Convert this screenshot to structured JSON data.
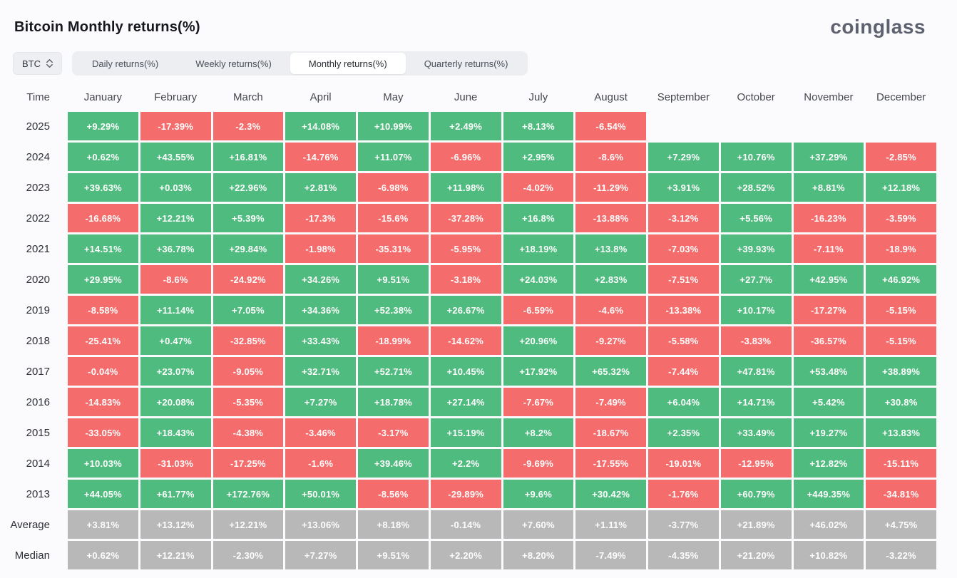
{
  "page": {
    "title": "Bitcoin Monthly returns(%)",
    "brand": "coinglass"
  },
  "controls": {
    "coin_selector": {
      "value": "BTC"
    },
    "tabs": [
      {
        "label": "Daily returns(%)",
        "active": false
      },
      {
        "label": "Weekly returns(%)",
        "active": false
      },
      {
        "label": "Monthly returns(%)",
        "active": true
      },
      {
        "label": "Quarterly returns(%)",
        "active": false
      }
    ]
  },
  "colors": {
    "positive": "#4fbb7f",
    "negative": "#f56c6c",
    "neutral": "#b8b8b8"
  },
  "chart_data": {
    "type": "heatmap",
    "title": "Bitcoin Monthly returns(%)",
    "columns": [
      "Time",
      "January",
      "February",
      "March",
      "April",
      "May",
      "June",
      "July",
      "August",
      "September",
      "October",
      "November",
      "December"
    ],
    "rows": [
      {
        "label": "2025",
        "style": "year",
        "values": [
          "+9.29%",
          "-17.39%",
          "-2.3%",
          "+14.08%",
          "+10.99%",
          "+2.49%",
          "+8.13%",
          "-6.54%",
          null,
          null,
          null,
          null
        ]
      },
      {
        "label": "2024",
        "style": "year",
        "values": [
          "+0.62%",
          "+43.55%",
          "+16.81%",
          "-14.76%",
          "+11.07%",
          "-6.96%",
          "+2.95%",
          "-8.6%",
          "+7.29%",
          "+10.76%",
          "+37.29%",
          "-2.85%"
        ]
      },
      {
        "label": "2023",
        "style": "year",
        "values": [
          "+39.63%",
          "+0.03%",
          "+22.96%",
          "+2.81%",
          "-6.98%",
          "+11.98%",
          "-4.02%",
          "-11.29%",
          "+3.91%",
          "+28.52%",
          "+8.81%",
          "+12.18%"
        ]
      },
      {
        "label": "2022",
        "style": "year",
        "values": [
          "-16.68%",
          "+12.21%",
          "+5.39%",
          "-17.3%",
          "-15.6%",
          "-37.28%",
          "+16.8%",
          "-13.88%",
          "-3.12%",
          "+5.56%",
          "-16.23%",
          "-3.59%"
        ]
      },
      {
        "label": "2021",
        "style": "year",
        "values": [
          "+14.51%",
          "+36.78%",
          "+29.84%",
          "-1.98%",
          "-35.31%",
          "-5.95%",
          "+18.19%",
          "+13.8%",
          "-7.03%",
          "+39.93%",
          "-7.11%",
          "-18.9%"
        ]
      },
      {
        "label": "2020",
        "style": "year",
        "values": [
          "+29.95%",
          "-8.6%",
          "-24.92%",
          "+34.26%",
          "+9.51%",
          "-3.18%",
          "+24.03%",
          "+2.83%",
          "-7.51%",
          "+27.7%",
          "+42.95%",
          "+46.92%"
        ]
      },
      {
        "label": "2019",
        "style": "year",
        "values": [
          "-8.58%",
          "+11.14%",
          "+7.05%",
          "+34.36%",
          "+52.38%",
          "+26.67%",
          "-6.59%",
          "-4.6%",
          "-13.38%",
          "+10.17%",
          "-17.27%",
          "-5.15%"
        ]
      },
      {
        "label": "2018",
        "style": "year",
        "values": [
          "-25.41%",
          "+0.47%",
          "-32.85%",
          "+33.43%",
          "-18.99%",
          "-14.62%",
          "+20.96%",
          "-9.27%",
          "-5.58%",
          "-3.83%",
          "-36.57%",
          "-5.15%"
        ]
      },
      {
        "label": "2017",
        "style": "year",
        "values": [
          "-0.04%",
          "+23.07%",
          "-9.05%",
          "+32.71%",
          "+52.71%",
          "+10.45%",
          "+17.92%",
          "+65.32%",
          "-7.44%",
          "+47.81%",
          "+53.48%",
          "+38.89%"
        ]
      },
      {
        "label": "2016",
        "style": "year",
        "values": [
          "-14.83%",
          "+20.08%",
          "-5.35%",
          "+7.27%",
          "+18.78%",
          "+27.14%",
          "-7.67%",
          "-7.49%",
          "+6.04%",
          "+14.71%",
          "+5.42%",
          "+30.8%"
        ]
      },
      {
        "label": "2015",
        "style": "year",
        "values": [
          "-33.05%",
          "+18.43%",
          "-4.38%",
          "-3.46%",
          "-3.17%",
          "+15.19%",
          "+8.2%",
          "-18.67%",
          "+2.35%",
          "+33.49%",
          "+19.27%",
          "+13.83%"
        ]
      },
      {
        "label": "2014",
        "style": "year",
        "values": [
          "+10.03%",
          "-31.03%",
          "-17.25%",
          "-1.6%",
          "+39.46%",
          "+2.2%",
          "-9.69%",
          "-17.55%",
          "-19.01%",
          "-12.95%",
          "+12.82%",
          "-15.11%"
        ]
      },
      {
        "label": "2013",
        "style": "year",
        "values": [
          "+44.05%",
          "+61.77%",
          "+172.76%",
          "+50.01%",
          "-8.56%",
          "-29.89%",
          "+9.6%",
          "+30.42%",
          "-1.76%",
          "+60.79%",
          "+449.35%",
          "-34.81%"
        ]
      },
      {
        "label": "Average",
        "style": "neutral",
        "values": [
          "+3.81%",
          "+13.12%",
          "+12.21%",
          "+13.06%",
          "+8.18%",
          "-0.14%",
          "+7.60%",
          "+1.11%",
          "-3.77%",
          "+21.89%",
          "+46.02%",
          "+4.75%"
        ]
      },
      {
        "label": "Median",
        "style": "neutral",
        "values": [
          "+0.62%",
          "+12.21%",
          "-2.30%",
          "+7.27%",
          "+9.51%",
          "+2.20%",
          "+8.20%",
          "-7.49%",
          "-4.35%",
          "+21.20%",
          "+10.82%",
          "-3.22%"
        ]
      }
    ]
  }
}
